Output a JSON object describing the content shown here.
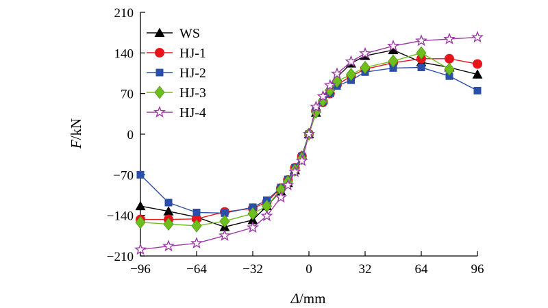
{
  "chart_data": {
    "type": "line",
    "xlabel": "Δ/mm",
    "ylabel": "F/kN",
    "xlim": [
      -96,
      96
    ],
    "ylim": [
      -210,
      210
    ],
    "xticks": [
      -96,
      -64,
      -32,
      0,
      32,
      64,
      96
    ],
    "yticks": [
      -210,
      -140,
      -70,
      0,
      70,
      140,
      210
    ],
    "xtick_labels": [
      "−96",
      "−64",
      "−32",
      "0",
      "32",
      "64",
      "96"
    ],
    "ytick_labels": [
      "−210",
      "−140",
      "−70",
      "0",
      "70",
      "140",
      "210"
    ],
    "grid": false,
    "legend_position": "top-left",
    "series": [
      {
        "name": "WS",
        "marker": "triangle",
        "color": "#000000",
        "points": [
          [
            -96,
            -124
          ],
          [
            -80,
            -133
          ],
          [
            -64,
            -143
          ],
          [
            -48,
            -160
          ],
          [
            -32,
            -148
          ],
          [
            -24,
            -124
          ],
          [
            -16,
            -98
          ],
          [
            -12,
            -84
          ],
          [
            -8,
            -62
          ],
          [
            -4,
            -37
          ],
          [
            0,
            0
          ],
          [
            4,
            37
          ],
          [
            8,
            60
          ],
          [
            12,
            82
          ],
          [
            16,
            98
          ],
          [
            24,
            122
          ],
          [
            32,
            135
          ],
          [
            48,
            145
          ],
          [
            64,
            124
          ],
          [
            80,
            115
          ],
          [
            96,
            103
          ]
        ]
      },
      {
        "name": "HJ-1",
        "marker": "circle",
        "color": "#e8141c",
        "points": [
          [
            -96,
            -147
          ],
          [
            -80,
            -147
          ],
          [
            -64,
            -146
          ],
          [
            -48,
            -134
          ],
          [
            -32,
            -128
          ],
          [
            -24,
            -117
          ],
          [
            -16,
            -93
          ],
          [
            -12,
            -79
          ],
          [
            -8,
            -58
          ],
          [
            -4,
            -38
          ],
          [
            0,
            0
          ],
          [
            4,
            40
          ],
          [
            8,
            55
          ],
          [
            12,
            70
          ],
          [
            16,
            85
          ],
          [
            24,
            100
          ],
          [
            32,
            112
          ],
          [
            48,
            123
          ],
          [
            64,
            130
          ],
          [
            80,
            130
          ],
          [
            96,
            121
          ]
        ]
      },
      {
        "name": "HJ-2",
        "marker": "square",
        "color": "#2b4fa8",
        "points": [
          [
            -96,
            -70
          ],
          [
            -80,
            -118
          ],
          [
            -64,
            -135
          ],
          [
            -48,
            -136
          ],
          [
            -32,
            -126
          ],
          [
            -24,
            -114
          ],
          [
            -16,
            -92
          ],
          [
            -12,
            -78
          ],
          [
            -8,
            -58
          ],
          [
            -4,
            -38
          ],
          [
            0,
            0
          ],
          [
            4,
            40
          ],
          [
            8,
            56
          ],
          [
            12,
            70
          ],
          [
            16,
            83
          ],
          [
            24,
            93
          ],
          [
            32,
            107
          ],
          [
            48,
            114
          ],
          [
            64,
            115
          ],
          [
            80,
            100
          ],
          [
            96,
            75
          ]
        ]
      },
      {
        "name": "HJ-3",
        "marker": "diamond",
        "color": "#6fbe1e",
        "points": [
          [
            -96,
            -152
          ],
          [
            -80,
            -155
          ],
          [
            -64,
            -158
          ],
          [
            -48,
            -150
          ],
          [
            -32,
            -137
          ],
          [
            -24,
            -124
          ],
          [
            -16,
            -96
          ],
          [
            -12,
            -82
          ],
          [
            -8,
            -62
          ],
          [
            -4,
            -42
          ],
          [
            0,
            0
          ],
          [
            4,
            38
          ],
          [
            8,
            58
          ],
          [
            12,
            76
          ],
          [
            16,
            91
          ],
          [
            24,
            103
          ],
          [
            32,
            115
          ],
          [
            48,
            126
          ],
          [
            64,
            140
          ],
          [
            80,
            112
          ],
          [
            96,
            null
          ]
        ]
      },
      {
        "name": "HJ-4",
        "marker": "star",
        "color": "#9b3aa5",
        "points": [
          [
            -96,
            -199
          ],
          [
            -80,
            -193
          ],
          [
            -64,
            -188
          ],
          [
            -48,
            -175
          ],
          [
            -32,
            -161
          ],
          [
            -24,
            -141
          ],
          [
            -16,
            -109
          ],
          [
            -12,
            -88
          ],
          [
            -8,
            -65
          ],
          [
            -4,
            -46
          ],
          [
            0,
            0
          ],
          [
            4,
            47
          ],
          [
            8,
            65
          ],
          [
            12,
            84
          ],
          [
            16,
            104
          ],
          [
            24,
            125
          ],
          [
            32,
            139
          ],
          [
            48,
            152
          ],
          [
            64,
            161
          ],
          [
            80,
            164
          ],
          [
            96,
            167
          ]
        ]
      }
    ]
  }
}
